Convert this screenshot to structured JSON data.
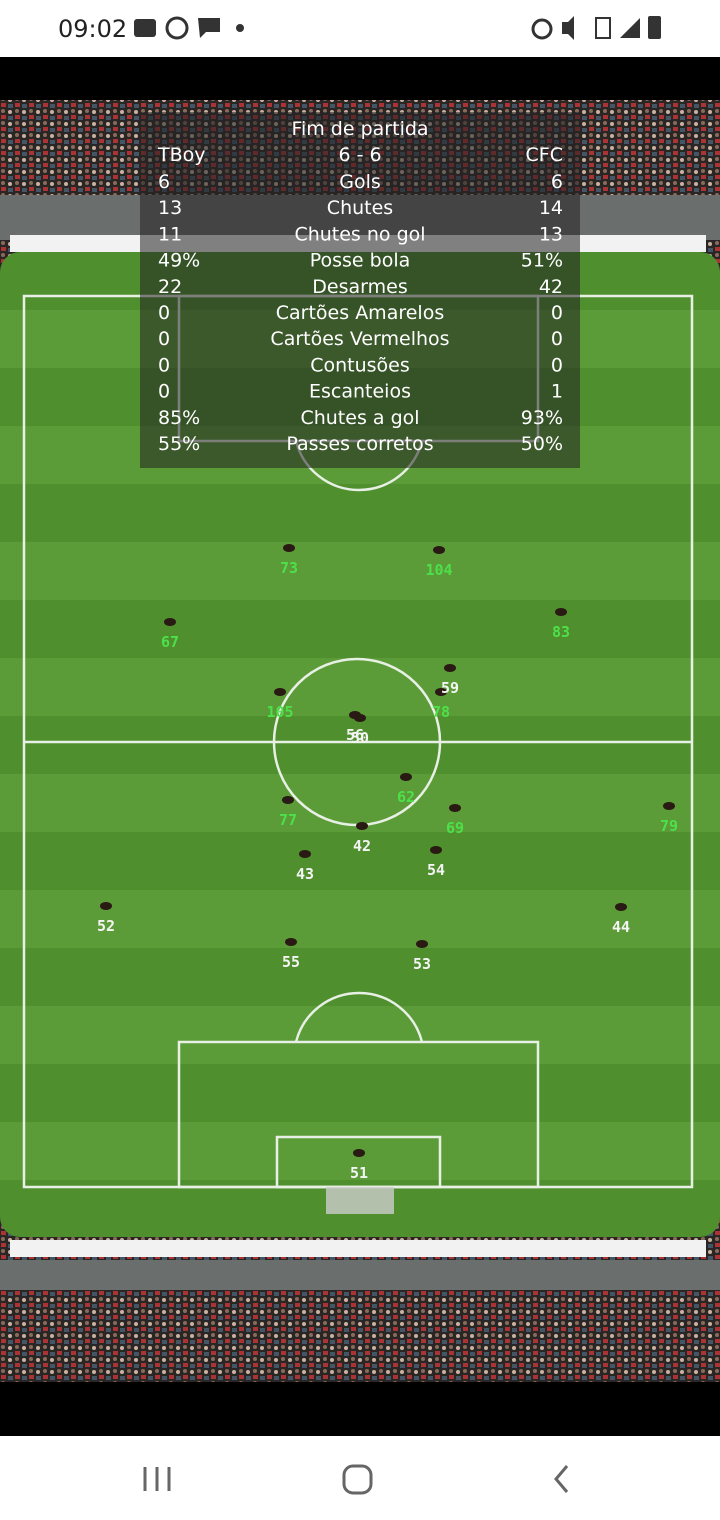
{
  "status_bar": {
    "time": "09:02"
  },
  "stats": {
    "title": "Fim de partida",
    "header": [
      "TBoy",
      "6 - 6",
      "CFC"
    ],
    "rows": [
      [
        "6",
        "Gols",
        "6"
      ],
      [
        "13",
        "Chutes",
        "14"
      ],
      [
        "11",
        "Chutes no gol",
        "13"
      ],
      [
        "49%",
        "Posse bola",
        "51%"
      ],
      [
        "22",
        "Desarmes",
        "42"
      ],
      [
        "0",
        "Cartões Amarelos",
        "0"
      ],
      [
        "0",
        "Cartões Vermelhos",
        "0"
      ],
      [
        "0",
        "Contusões",
        "0"
      ],
      [
        "0",
        "Escanteios",
        "1"
      ],
      [
        "85%",
        "Chutes a gol",
        "93%"
      ],
      [
        "55%",
        "Passes corretos",
        "50%"
      ]
    ]
  },
  "players": {
    "green": [
      "73",
      "104",
      "67",
      "83",
      "105",
      "78",
      "62",
      "77",
      "69",
      "79"
    ],
    "white": [
      "59",
      "56",
      "50",
      "42",
      "43",
      "54",
      "52",
      "44",
      "55",
      "53",
      "51"
    ]
  }
}
